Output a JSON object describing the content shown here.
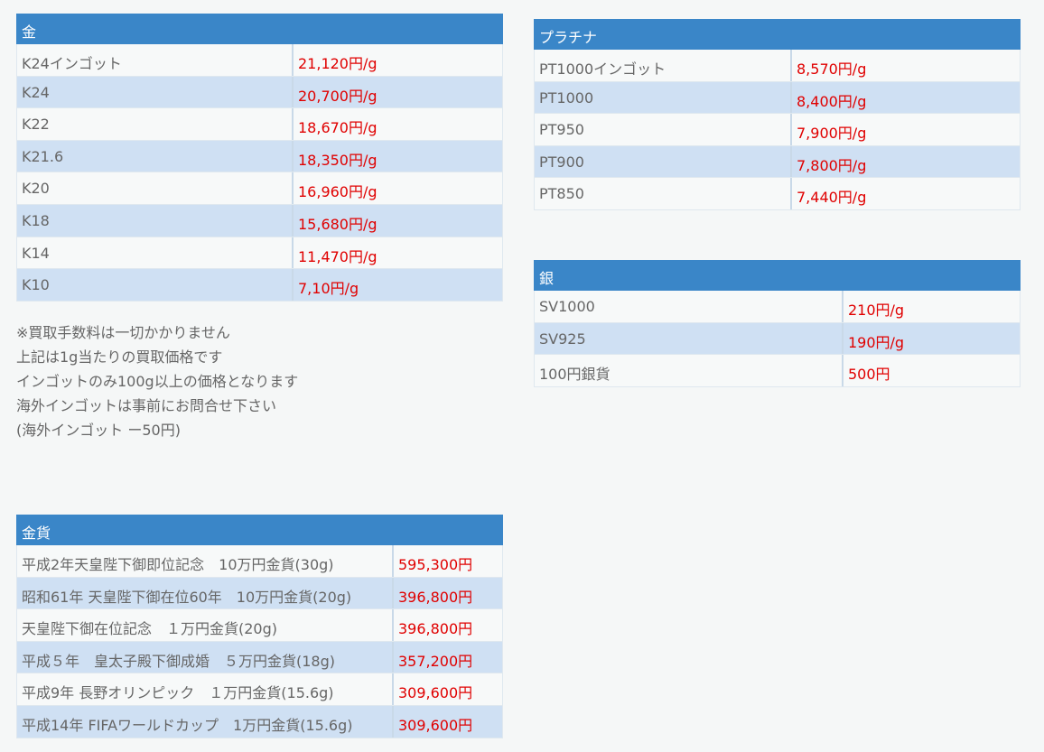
{
  "tables": [
    {
      "title": "金",
      "rows": [
        [
          "K24インゴット",
          "21,120円/g"
        ],
        [
          "K24",
          "20,700円/g"
        ],
        [
          "K22",
          "18,670円/g"
        ],
        [
          "K21.6",
          "18,350円/g"
        ],
        [
          "K20",
          "16,960円/g"
        ],
        [
          "K18",
          "15,680円/g"
        ],
        [
          "K14",
          "11,470円/g"
        ],
        [
          "K10",
          "7,10円/g"
        ]
      ]
    },
    {
      "title": "プラチナ",
      "rows": [
        [
          "PT1000インゴット",
          "8,570円/g"
        ],
        [
          "PT1000",
          "8,400円/g"
        ],
        [
          "PT950",
          "7,900円/g"
        ],
        [
          "PT900",
          "7,800円/g"
        ],
        [
          "PT850",
          "7,440円/g"
        ]
      ]
    },
    {
      "title": "銀",
      "rows": [
        [
          "SV1000",
          "210円/g"
        ],
        [
          "SV925",
          "190円/g"
        ],
        [
          "100円銀貨",
          "500円"
        ]
      ]
    },
    {
      "title": "金貨",
      "rows": [
        [
          "平成2年天皇陛下御即位記念　10万円金貨(30g)",
          "595,300円"
        ],
        [
          "昭和61年 天皇陛下御在位60年　10万円金貨(20g)",
          "396,800円"
        ],
        [
          "天皇陛下御在位記念　１万円金貨(20g)",
          "396,800円"
        ],
        [
          "平成５年　皇太子殿下御成婚　５万円金貨(18g)",
          "357,200円"
        ],
        [
          "平成9年 長野オリンピック　１万円金貨(15.6g)",
          "309,600円"
        ],
        [
          "平成14年 FIFAワールドカップ　1万円金貨(15.6g)",
          "309,600円"
        ]
      ]
    }
  ],
  "notes": [
    "※買取手数料は一切かかりません",
    "上記は1g当たりの買取価格です",
    "インゴットのみ100g以上の価格となります",
    "海外インゴットは事前にお問合せ下さい",
    "(海外インゴット ー50円)"
  ]
}
